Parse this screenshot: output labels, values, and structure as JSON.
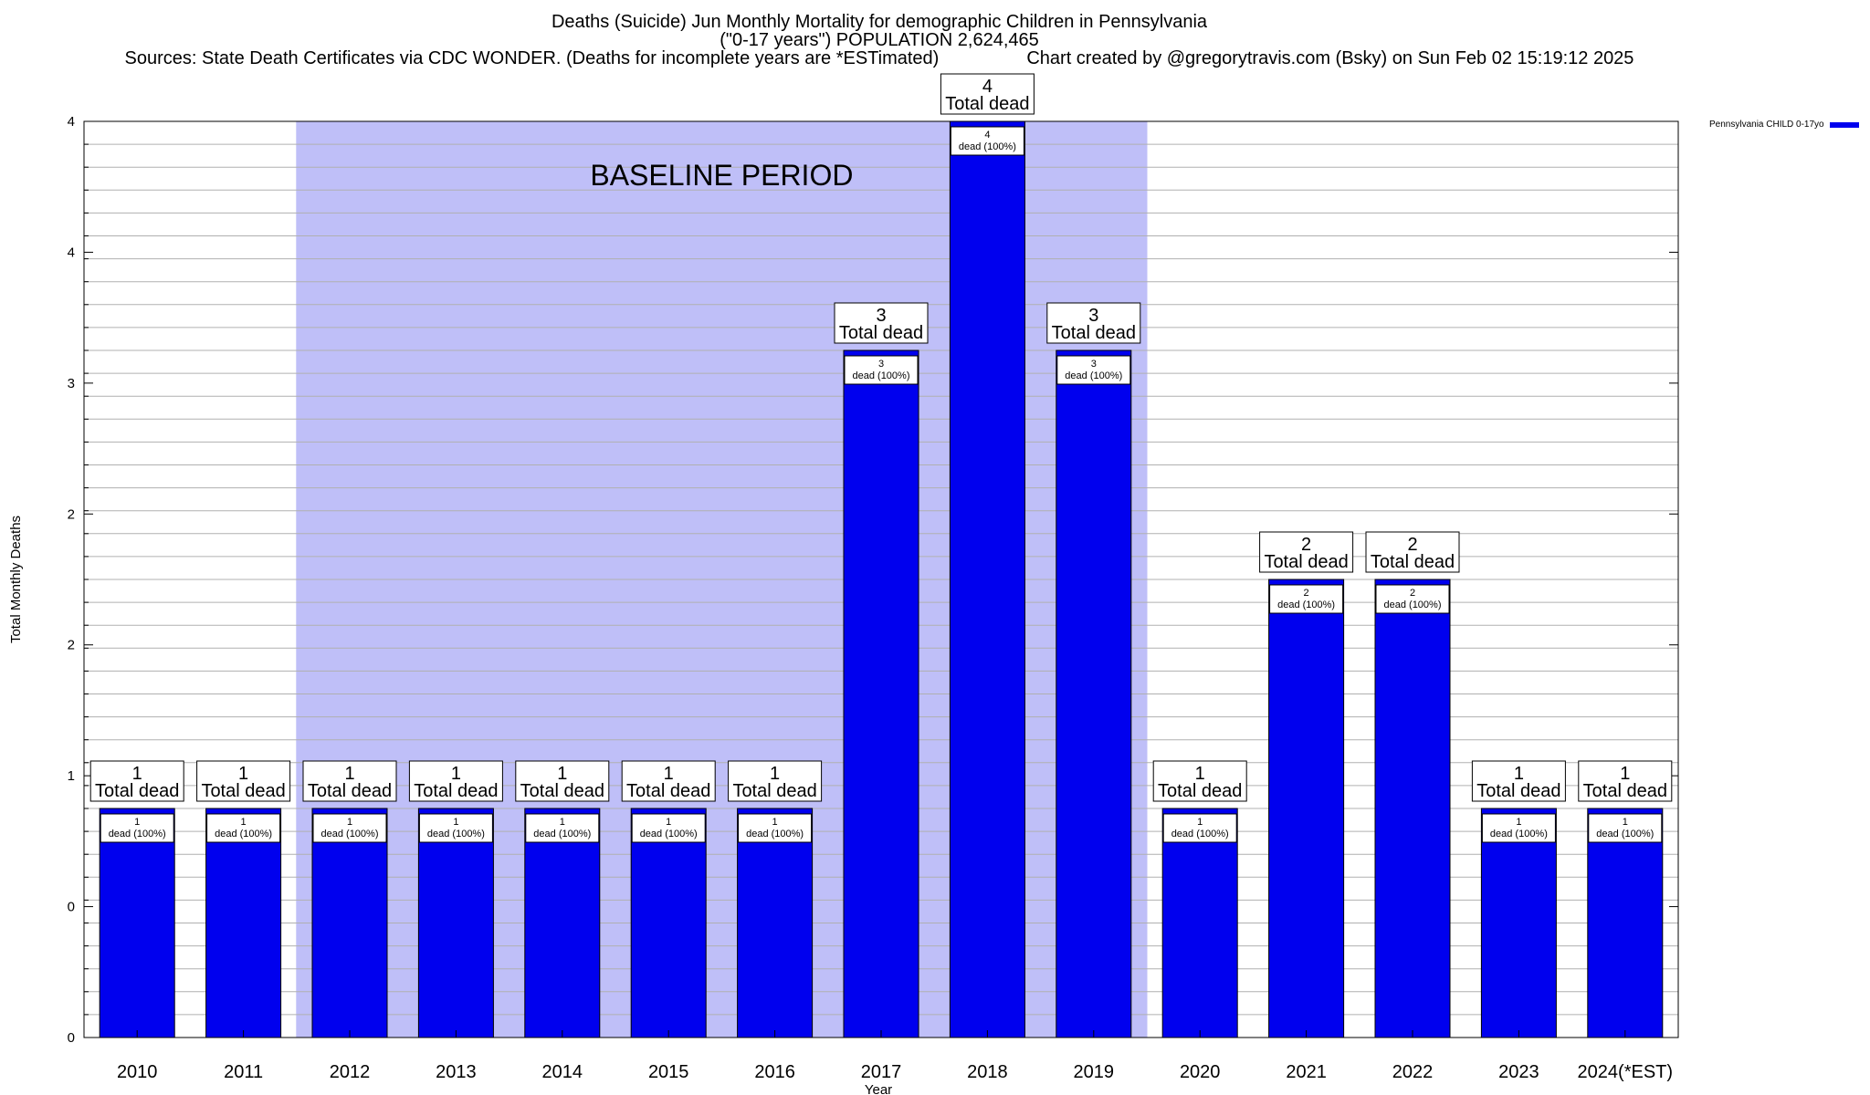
{
  "chart_data": {
    "type": "bar",
    "title_line1": "Deaths (Suicide) Jun Monthly Mortality for demographic Children in Pennsylvania",
    "title_line2": "(\"0-17 years\") POPULATION 2,624,465",
    "title_line3_left": "Sources: State Death Certificates via CDC WONDER. (Deaths for incomplete years are *ESTimated)",
    "title_line3_right": "Chart created by @gregorytravis.com (Bsky) on Sun Feb 02 15:19:12 2025",
    "xlabel": "Year",
    "ylabel": "Total Monthly Deaths",
    "ylim": [
      0,
      4
    ],
    "y_tick_labels": [
      "0",
      "0",
      "1",
      "2",
      "2",
      "3",
      "4",
      "4"
    ],
    "categories": [
      "2010",
      "2011",
      "2012",
      "2013",
      "2014",
      "2015",
      "2016",
      "2017",
      "2018",
      "2019",
      "2020",
      "2021",
      "2022",
      "2023",
      "2024(*EST)"
    ],
    "series": [
      {
        "name": "Pennsylvania CHILD 0-17yo",
        "color": "#0000ee",
        "values": [
          1,
          1,
          1,
          1,
          1,
          1,
          1,
          3,
          4,
          3,
          1,
          2,
          2,
          1,
          1
        ]
      }
    ],
    "top_label_suffix": "Total dead",
    "inner_label_suffix": "dead (100%)",
    "baseline_label": "BASELINE PERIOD",
    "baseline_range": [
      "2012",
      "2019"
    ],
    "baseline_color": "#bfbff8",
    "grid": true,
    "legend_position": "top-right"
  }
}
